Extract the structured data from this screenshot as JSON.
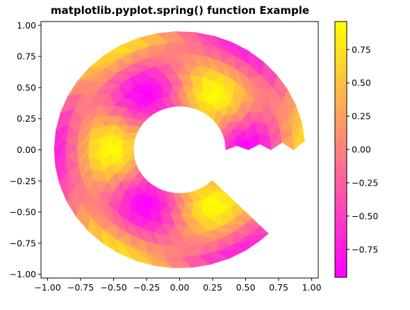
{
  "chart_data": {
    "type": "heatmap",
    "plot_kind": "tripcolor",
    "title": "matplotlib.pyplot.spring() function Example",
    "colormap": "spring",
    "colors": {
      "low": "#ff00ff",
      "high": "#ffff00"
    },
    "xlim": [
      -1.05,
      1.05
    ],
    "ylim": [
      -1.03,
      1.03
    ],
    "xticks": [
      -1.0,
      -0.75,
      -0.5,
      -0.25,
      0.0,
      0.25,
      0.5,
      0.75,
      1.0
    ],
    "xtick_labels": [
      "−1.00",
      "−0.75",
      "−0.50",
      "−0.25",
      "0.00",
      "0.25",
      "0.50",
      "0.75",
      "1.00"
    ],
    "yticks": [
      1.0,
      0.75,
      0.5,
      0.25,
      0.0,
      -0.25,
      -0.5,
      -0.75,
      -1.0
    ],
    "ytick_labels": [
      "1.00",
      "0.75",
      "0.50",
      "0.25",
      "0.00",
      "−0.25",
      "−0.50",
      "−0.75",
      "−1.00"
    ],
    "colorbar": {
      "range": [
        -0.96,
        0.96
      ],
      "ticks": [
        0.75,
        0.5,
        0.25,
        0.0,
        -0.25,
        -0.5,
        -0.75
      ],
      "tick_labels": [
        "0.75",
        "0.50",
        "0.25",
        "0.00",
        "−0.25",
        "−0.50",
        "−0.75"
      ]
    },
    "mesh": {
      "inner_radius": 0.35,
      "outer_radius": 0.95,
      "n_radii": 8,
      "n_angles": 36,
      "angle_range_deg": [
        0,
        315
      ],
      "value_function": "cos(3*theta) * cos(6*r)"
    }
  }
}
